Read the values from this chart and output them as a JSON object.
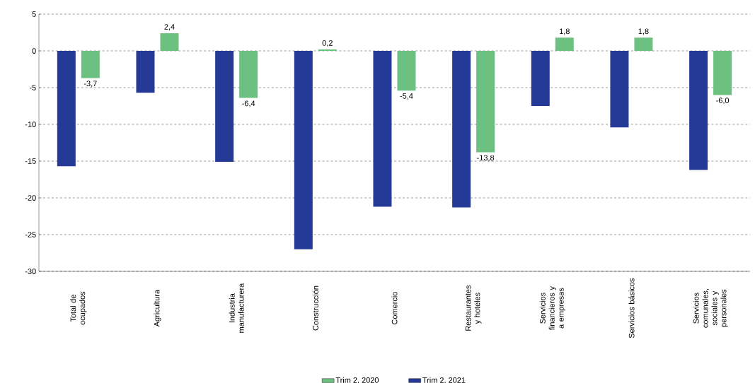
{
  "chart_data": {
    "type": "bar",
    "categories": [
      "Total de ocupados",
      "Agricultura",
      "Industria manufacturera",
      "Construcción",
      "Comercio",
      "Restaurantes y hoteles",
      "Servicios financieros y a empresas",
      "Servicios básicos",
      "Servicios comunales, sociales y personales"
    ],
    "series": [
      {
        "name": "Trim 2, 2020",
        "color": "#6cc180",
        "values": [
          -3.7,
          2.4,
          -6.4,
          0.2,
          -5.4,
          -13.8,
          1.8,
          1.8,
          -6.0
        ],
        "value_labels": [
          "-3,7",
          "2,4",
          "-6,4",
          "0,2",
          "-5,4",
          "-13,8",
          "1,8",
          "1,8",
          "-6,0"
        ]
      },
      {
        "name": "Trim 2, 2021",
        "color": "#253a96",
        "values": [
          -15.7,
          -5.7,
          -15.1,
          -27.0,
          -21.2,
          -21.3,
          -7.5,
          -10.4,
          -16.2
        ]
      }
    ],
    "ylim": [
      -30,
      5
    ],
    "yticks": [
      -30,
      -25,
      -20,
      -15,
      -10,
      -5,
      0,
      5
    ],
    "grid": "y",
    "legend": "bottom"
  }
}
